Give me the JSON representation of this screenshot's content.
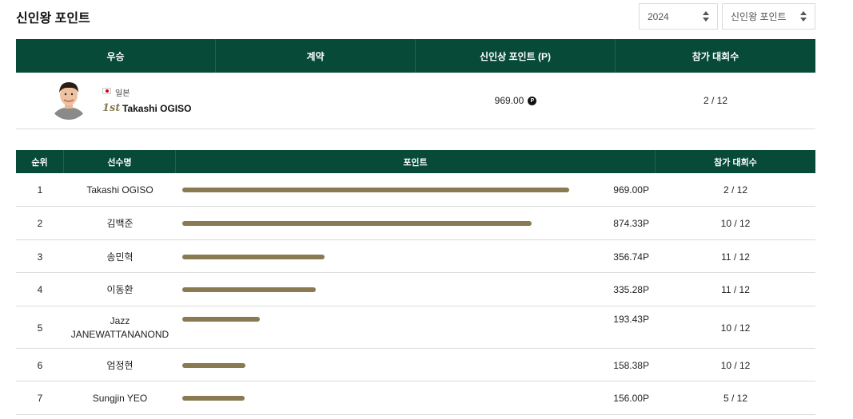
{
  "header": {
    "title": "신인왕 포인트",
    "year_select": "2024",
    "category_select": "신인왕 포인트"
  },
  "winner_table": {
    "columns": [
      "우승",
      "계약",
      "신인상 포인트 (P)",
      "참가 대회수"
    ],
    "winner": {
      "country": "일본",
      "rank_label": "1st",
      "name": "Takashi OGISO",
      "points": "969.00",
      "point_icon": "P",
      "events": "2 / 12"
    }
  },
  "ranking_table": {
    "columns": [
      "순위",
      "선수명",
      "포인트",
      "참가 대회수"
    ],
    "max_points": 969.0,
    "rows": [
      {
        "rank": "1",
        "name": "Takashi OGISO",
        "points_value": 969.0,
        "points": "969.00P",
        "events": "2 / 12"
      },
      {
        "rank": "2",
        "name": "김백준",
        "points_value": 874.33,
        "points": "874.33P",
        "events": "10 / 12"
      },
      {
        "rank": "3",
        "name": "송민혁",
        "points_value": 356.74,
        "points": "356.74P",
        "events": "11 / 12"
      },
      {
        "rank": "4",
        "name": "이동환",
        "points_value": 335.28,
        "points": "335.28P",
        "events": "11 / 12"
      },
      {
        "rank": "5",
        "name": "Jazz JANEWATTANANOND",
        "points_value": 193.43,
        "points": "193.43P",
        "events": "10 / 12"
      },
      {
        "rank": "6",
        "name": "엄정현",
        "points_value": 158.38,
        "points": "158.38P",
        "events": "10 / 12"
      },
      {
        "rank": "7",
        "name": "Sungjin YEO",
        "points_value": 156.0,
        "points": "156.00P",
        "events": "5 / 12"
      }
    ]
  },
  "colors": {
    "header_bg": "#064a37",
    "bar": "#8a7a52"
  }
}
